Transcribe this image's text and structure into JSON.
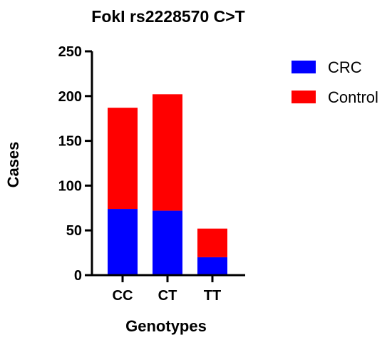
{
  "chart_data": {
    "type": "bar",
    "stacked": true,
    "title": "FokI rs2228570 C>T",
    "xlabel": "Genotypes",
    "ylabel": "Cases",
    "categories": [
      "CC",
      "CT",
      "TT"
    ],
    "series": [
      {
        "name": "CRC",
        "values": [
          74,
          72,
          20
        ],
        "color": "#0000ff"
      },
      {
        "name": "Control",
        "values": [
          113,
          130,
          32
        ],
        "color": "#ff0000"
      }
    ],
    "ylim": [
      0,
      250
    ],
    "yticks": [
      0,
      50,
      100,
      150,
      200,
      250
    ],
    "grid": false,
    "legend": "right"
  }
}
